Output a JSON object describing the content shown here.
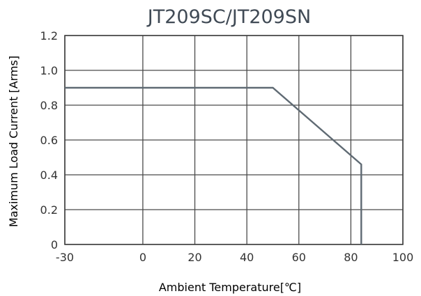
{
  "chart_data": {
    "type": "line",
    "title": "JT209SC/JT209SN",
    "xlabel": "Ambient Temperature[℃]",
    "ylabel": "Maximum Load Current [Arms]",
    "xlim": [
      -30,
      100
    ],
    "ylim": [
      0,
      1.2
    ],
    "xticks": [
      -30,
      0,
      20,
      40,
      60,
      80,
      100
    ],
    "yticks": [
      0,
      0.2,
      0.4,
      0.6,
      0.8,
      1.0,
      1.2
    ],
    "xtick_labels": [
      "-30",
      "0",
      "20",
      "40",
      "60",
      "80",
      "100"
    ],
    "ytick_labels": [
      "0",
      "0.2",
      "0.4",
      "0.6",
      "0.8",
      "1.0",
      "1.2"
    ],
    "grid": true,
    "series": [
      {
        "color": "#5f6a73",
        "x": [
          -30,
          50,
          84,
          84
        ],
        "y": [
          0.9,
          0.9,
          0.46,
          0
        ]
      }
    ]
  }
}
